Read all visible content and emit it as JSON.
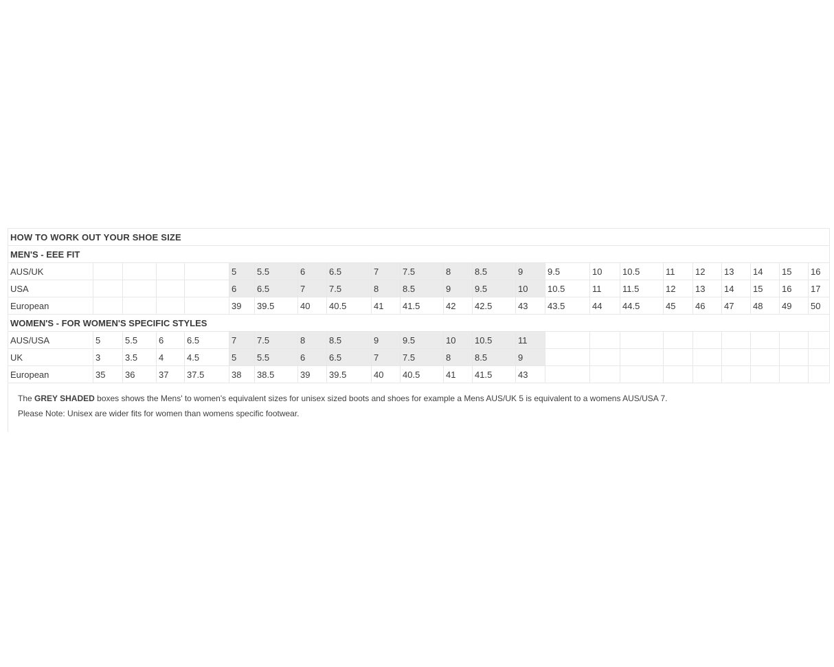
{
  "size_guide": {
    "title": "HOW TO WORK OUT YOUR SHOE SIZE",
    "sections": [
      {
        "heading": "MEN'S - EEE FIT",
        "rows": [
          {
            "label": "AUS/UK",
            "cells": [
              "",
              "",
              "",
              "",
              "5",
              "5.5",
              "6",
              "6.5",
              "7",
              "7.5",
              "8",
              "8.5",
              "9",
              "9.5",
              "10",
              "10.5",
              "11",
              "12",
              "13",
              "14",
              "15",
              "16"
            ],
            "shade_range": [
              4,
              12
            ]
          },
          {
            "label": "USA",
            "cells": [
              "",
              "",
              "",
              "",
              "6",
              "6.5",
              "7",
              "7.5",
              "8",
              "8.5",
              "9",
              "9.5",
              "10",
              "10.5",
              "11",
              "11.5",
              "12",
              "13",
              "14",
              "15",
              "16",
              "17"
            ],
            "shade_range": [
              4,
              12
            ]
          },
          {
            "label": "European",
            "cells": [
              "",
              "",
              "",
              "",
              "39",
              "39.5",
              "40",
              "40.5",
              "41",
              "41.5",
              "42",
              "42.5",
              "43",
              "43.5",
              "44",
              "44.5",
              "45",
              "46",
              "47",
              "48",
              "49",
              "50"
            ],
            "shade_range": null
          }
        ]
      },
      {
        "heading": "WOMEN'S - FOR WOMEN'S SPECIFIC STYLES",
        "rows": [
          {
            "label": "AUS/USA",
            "cells": [
              "5",
              "5.5",
              "6",
              "6.5",
              "7",
              "7.5",
              "8",
              "8.5",
              "9",
              "9.5",
              "10",
              "10.5",
              "11",
              "",
              "",
              "",
              "",
              "",
              "",
              "",
              "",
              ""
            ],
            "shade_range": [
              4,
              12
            ]
          },
          {
            "label": "UK",
            "cells": [
              "3",
              "3.5",
              "4",
              "4.5",
              "5",
              "5.5",
              "6",
              "6.5",
              "7",
              "7.5",
              "8",
              "8.5",
              "9",
              "",
              "",
              "",
              "",
              "",
              "",
              "",
              "",
              ""
            ],
            "shade_range": [
              4,
              12
            ]
          },
          {
            "label": "European",
            "cells": [
              "35",
              "36",
              "37",
              "37.5",
              "38",
              "38.5",
              "39",
              "39.5",
              "40",
              "40.5",
              "41",
              "41.5",
              "43",
              "",
              "",
              "",
              "",
              "",
              "",
              "",
              "",
              ""
            ],
            "shade_range": null
          }
        ]
      }
    ],
    "footnote": {
      "line1_prefix": "The ",
      "line1_bold": "GREY SHADED",
      "line1_rest": " boxes shows the Mens' to women's equivalent sizes for unisex sized boots and shoes for example a Mens AUS/UK 5 is equivalent to a womens AUS/USA 7.",
      "line2": "Please Note: Unisex are wider fits for women than womens specific footwear."
    },
    "colors": {
      "grid_border": "#e7e7e7",
      "shaded_cell_bg": "#ebebeb",
      "title_text": "#141414",
      "body_text": "#3a3a3a"
    }
  }
}
